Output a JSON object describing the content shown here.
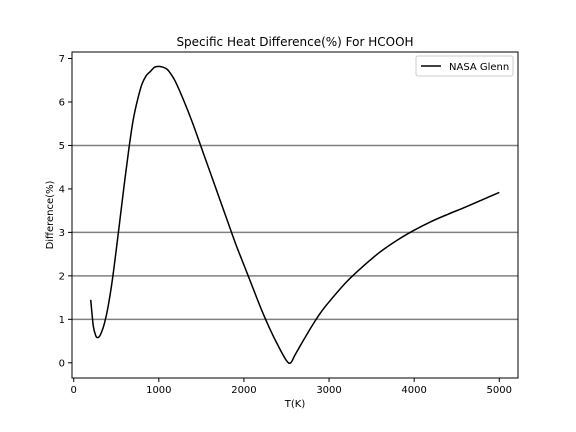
{
  "chart_data": {
    "type": "line",
    "title": "Specific Heat Difference(%) For HCOOH",
    "xlabel": "T(K)",
    "ylabel": "Difference(%)",
    "xlim": [
      -20,
      5220
    ],
    "ylim": [
      -0.35,
      7.15
    ],
    "xticks": [
      0,
      1000,
      2000,
      3000,
      4000,
      5000
    ],
    "yticks": [
      0,
      1,
      2,
      3,
      4,
      5,
      6,
      7
    ],
    "reference_lines": [
      1,
      2,
      3,
      5
    ],
    "legend_position": "top-right",
    "grid": false,
    "series": [
      {
        "name": "NASA Glenn",
        "color": "#000000",
        "x": [
          200,
          230,
          260,
          280,
          300,
          330,
          360,
          400,
          450,
          500,
          550,
          600,
          650,
          700,
          750,
          800,
          850,
          900,
          950,
          1000,
          1050,
          1100,
          1150,
          1200,
          1300,
          1400,
          1500,
          1600,
          1700,
          1800,
          1900,
          2000,
          2100,
          2200,
          2300,
          2400,
          2500,
          2550,
          2600,
          2700,
          2800,
          2900,
          3000,
          3200,
          3400,
          3600,
          3800,
          4000,
          4200,
          4400,
          4600,
          4800,
          5000
        ],
        "y": [
          1.45,
          0.85,
          0.62,
          0.58,
          0.6,
          0.72,
          0.9,
          1.25,
          1.85,
          2.6,
          3.4,
          4.2,
          4.95,
          5.6,
          6.05,
          6.4,
          6.6,
          6.7,
          6.8,
          6.82,
          6.8,
          6.75,
          6.62,
          6.45,
          6.0,
          5.5,
          4.95,
          4.4,
          3.85,
          3.3,
          2.75,
          2.25,
          1.75,
          1.25,
          0.8,
          0.4,
          0.05,
          0.0,
          0.18,
          0.52,
          0.85,
          1.15,
          1.4,
          1.85,
          2.22,
          2.55,
          2.82,
          3.05,
          3.25,
          3.42,
          3.58,
          3.75,
          3.92
        ]
      }
    ]
  }
}
